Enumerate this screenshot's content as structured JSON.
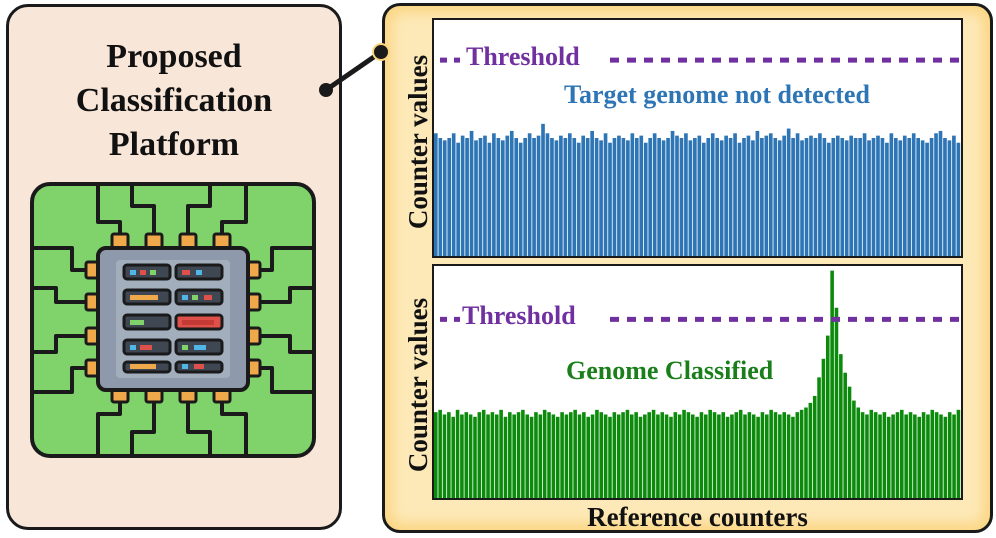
{
  "left_panel": {
    "title_lines": [
      "Proposed",
      "Classification",
      "Platform"
    ],
    "icon": "microchip-icon"
  },
  "connector": {
    "icon": "connector-line"
  },
  "xlabel": "Reference counters",
  "colors": {
    "threshold": "#7030a0",
    "top_bars": "#2e75b6",
    "bottom_bars": "#0b8a0b",
    "left_panel_bg": "#f8e6d9",
    "right_panel_bg": "#fde9b8",
    "chip_board": "#7fd36a"
  },
  "chart_data": [
    {
      "type": "bar",
      "ylabel": "Counter values",
      "threshold_label": "Threshold",
      "annotation": "Target genome not detected",
      "threshold": 0.83,
      "ylim": [
        0,
        1
      ],
      "values": [
        0.52,
        0.5,
        0.49,
        0.5,
        0.52,
        0.48,
        0.51,
        0.5,
        0.53,
        0.49,
        0.5,
        0.51,
        0.48,
        0.52,
        0.5,
        0.49,
        0.51,
        0.53,
        0.5,
        0.48,
        0.5,
        0.52,
        0.5,
        0.51,
        0.56,
        0.52,
        0.5,
        0.49,
        0.51,
        0.5,
        0.52,
        0.5,
        0.48,
        0.51,
        0.5,
        0.53,
        0.5,
        0.49,
        0.52,
        0.48,
        0.5,
        0.51,
        0.5,
        0.49,
        0.52,
        0.5,
        0.51,
        0.48,
        0.5,
        0.52,
        0.5,
        0.49,
        0.5,
        0.53,
        0.51,
        0.5,
        0.52,
        0.49,
        0.5,
        0.51,
        0.48,
        0.5,
        0.52,
        0.5,
        0.49,
        0.51,
        0.5,
        0.52,
        0.48,
        0.5,
        0.51,
        0.49,
        0.53,
        0.5,
        0.51,
        0.52,
        0.5,
        0.49,
        0.51,
        0.54,
        0.5,
        0.52,
        0.49,
        0.5,
        0.51,
        0.5,
        0.52,
        0.5,
        0.48,
        0.5,
        0.51,
        0.5,
        0.49,
        0.51,
        0.5,
        0.5,
        0.52,
        0.49,
        0.5,
        0.51,
        0.5,
        0.48,
        0.52,
        0.5,
        0.49,
        0.51,
        0.5,
        0.52,
        0.5,
        0.49,
        0.48,
        0.5,
        0.52,
        0.53,
        0.5,
        0.49,
        0.51,
        0.48
      ]
    },
    {
      "type": "bar",
      "ylabel": "Counter values",
      "threshold_label": "Threshold",
      "annotation": "Genome Classified",
      "threshold": 0.77,
      "ylim": [
        0,
        1
      ],
      "values": [
        0.37,
        0.38,
        0.36,
        0.37,
        0.35,
        0.38,
        0.36,
        0.37,
        0.36,
        0.35,
        0.37,
        0.38,
        0.36,
        0.37,
        0.36,
        0.38,
        0.35,
        0.37,
        0.36,
        0.37,
        0.38,
        0.36,
        0.35,
        0.37,
        0.36,
        0.38,
        0.37,
        0.36,
        0.35,
        0.37,
        0.36,
        0.37,
        0.38,
        0.36,
        0.37,
        0.35,
        0.36,
        0.38,
        0.37,
        0.36,
        0.35,
        0.37,
        0.36,
        0.37,
        0.38,
        0.36,
        0.37,
        0.35,
        0.36,
        0.37,
        0.38,
        0.36,
        0.37,
        0.36,
        0.35,
        0.37,
        0.36,
        0.38,
        0.37,
        0.36,
        0.35,
        0.37,
        0.36,
        0.38,
        0.37,
        0.36,
        0.37,
        0.35,
        0.36,
        0.37,
        0.38,
        0.36,
        0.37,
        0.36,
        0.35,
        0.37,
        0.36,
        0.38,
        0.37,
        0.36,
        0.37,
        0.36,
        0.35,
        0.37,
        0.38,
        0.39,
        0.41,
        0.44,
        0.52,
        0.6,
        0.7,
        0.98,
        0.82,
        0.62,
        0.54,
        0.48,
        0.42,
        0.39,
        0.37,
        0.36,
        0.38,
        0.37,
        0.36,
        0.37,
        0.35,
        0.36,
        0.37,
        0.38,
        0.36,
        0.37,
        0.36,
        0.35,
        0.37,
        0.36,
        0.38,
        0.37,
        0.36,
        0.35,
        0.37,
        0.36,
        0.38
      ]
    }
  ]
}
